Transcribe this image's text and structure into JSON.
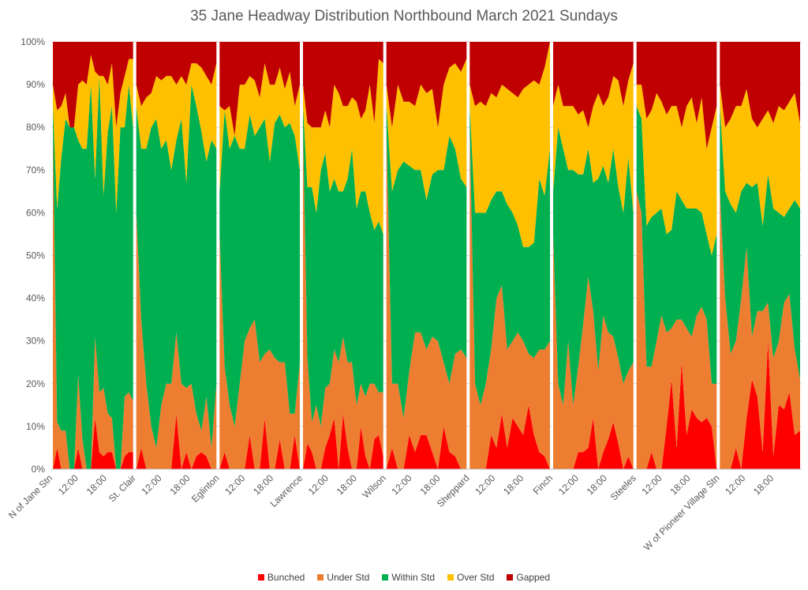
{
  "chart_data": {
    "type": "area",
    "stacking": "percent",
    "title": "35 Jane  Headway Distribution Northbound March 2021 Sundays",
    "ylim": [
      0,
      100
    ],
    "y_ticks": [
      "0%",
      "10%",
      "20%",
      "30%",
      "40%",
      "50%",
      "60%",
      "70%",
      "80%",
      "90%",
      "100%"
    ],
    "legend_position": "bottom",
    "grid": true,
    "x_tick_labels": [
      "N of Jane Stn",
      "12:00",
      "18:00",
      "St. Clair",
      "12:00",
      "18:00",
      "Eglinton",
      "12:00",
      "18:00",
      "Lawrence",
      "12:00",
      "18:00",
      "Wilson",
      "12:00",
      "18:00",
      "Sheppard",
      "12:00",
      "18:00",
      "Finch",
      "12:00",
      "18:00",
      "Steeles",
      "12:00",
      "18:00",
      "W of Pioneer Village Stn",
      "12:00",
      "18:00"
    ],
    "series": [
      {
        "name": "Bunched",
        "color": "#ff0000"
      },
      {
        "name": "Under Std",
        "color": "#ed7d31"
      },
      {
        "name": "Within Std",
        "color": "#00b050"
      },
      {
        "name": "Over Std",
        "color": "#ffc000"
      },
      {
        "name": "Gapped",
        "color": "#c00000"
      }
    ],
    "timepoints": [
      {
        "name": "N of Jane Stn",
        "bunched": [
          0,
          5,
          0,
          0,
          0,
          0,
          5,
          0,
          0,
          0,
          12,
          4,
          3,
          4,
          4,
          0,
          0,
          3,
          4,
          4
        ],
        "under": [
          80,
          6,
          9,
          9,
          0,
          0,
          17,
          7,
          0,
          0,
          19,
          14,
          16,
          9,
          8,
          0,
          0,
          14,
          14,
          12
        ],
        "within": [
          5,
          50,
          64,
          73,
          80,
          80,
          55,
          68,
          75,
          90,
          37,
          74,
          45,
          66,
          73,
          60,
          80,
          63,
          72,
          64
        ],
        "over": [
          5,
          23,
          12,
          6,
          0,
          0,
          13,
          16,
          15,
          7,
          25,
          0,
          28,
          11,
          10,
          20,
          8,
          12,
          6,
          16
        ],
        "gapped": [
          10,
          16,
          15,
          12,
          20,
          20,
          10,
          9,
          10,
          3,
          7,
          8,
          8,
          10,
          5,
          20,
          12,
          8,
          4,
          4
        ]
      },
      {
        "name": "St. Clair",
        "bunched": [
          0,
          5,
          0,
          0,
          0,
          0,
          0,
          0,
          13,
          0,
          4,
          0,
          3,
          4,
          3,
          0,
          0
        ],
        "under": [
          60,
          30,
          20,
          10,
          5,
          15,
          20,
          20,
          19,
          20,
          15,
          20,
          10,
          5,
          14,
          5,
          20
        ],
        "within": [
          25,
          40,
          55,
          70,
          77,
          60,
          57,
          50,
          45,
          62,
          48,
          70,
          72,
          70,
          55,
          72,
          55
        ],
        "over": [
          5,
          10,
          12,
          8,
          10,
          16,
          15,
          22,
          13,
          10,
          23,
          5,
          10,
          15,
          20,
          13,
          20
        ],
        "gapped": [
          10,
          15,
          13,
          12,
          8,
          9,
          8,
          8,
          10,
          8,
          10,
          5,
          5,
          6,
          8,
          10,
          5
        ]
      },
      {
        "name": "Eglinton",
        "bunched": [
          0,
          4,
          0,
          0,
          0,
          0,
          8,
          0,
          0,
          12,
          0,
          0,
          7,
          0,
          0,
          8,
          0
        ],
        "under": [
          55,
          20,
          15,
          10,
          20,
          30,
          25,
          35,
          25,
          15,
          28,
          26,
          18,
          25,
          13,
          5,
          25
        ],
        "within": [
          10,
          60,
          60,
          68,
          55,
          45,
          50,
          43,
          55,
          55,
          44,
          55,
          58,
          55,
          68,
          65,
          45
        ],
        "over": [
          20,
          0,
          10,
          0,
          15,
          15,
          9,
          13,
          7,
          13,
          18,
          9,
          11,
          9,
          12,
          7,
          20
        ],
        "gapped": [
          15,
          16,
          15,
          22,
          10,
          10,
          8,
          9,
          13,
          5,
          10,
          10,
          6,
          11,
          7,
          15,
          10
        ]
      },
      {
        "name": "Lawrence",
        "bunched": [
          0,
          6,
          4,
          0,
          0,
          5,
          8,
          12,
          0,
          13,
          5,
          0,
          0,
          10,
          3,
          0,
          7,
          8,
          3
        ],
        "under": [
          80,
          20,
          7,
          15,
          10,
          14,
          12,
          16,
          25,
          18,
          20,
          25,
          15,
          10,
          14,
          20,
          13,
          10,
          15
        ],
        "within": [
          5,
          40,
          55,
          45,
          60,
          55,
          45,
          40,
          40,
          34,
          43,
          50,
          46,
          45,
          48,
          40,
          36,
          40,
          37
        ],
        "over": [
          5,
          15,
          14,
          20,
          10,
          10,
          15,
          22,
          23,
          20,
          17,
          12,
          25,
          17,
          19,
          30,
          25,
          38,
          40
        ],
        "gapped": [
          10,
          19,
          20,
          20,
          20,
          16,
          20,
          10,
          12,
          15,
          15,
          13,
          14,
          18,
          16,
          10,
          19,
          4,
          5
        ]
      },
      {
        "name": "Wilson",
        "bunched": [
          0,
          5,
          0,
          0,
          8,
          4,
          8,
          8,
          4,
          0,
          10,
          4,
          3,
          0,
          0
        ],
        "under": [
          80,
          15,
          20,
          12,
          15,
          28,
          24,
          20,
          27,
          30,
          15,
          16,
          24,
          28,
          26
        ],
        "within": [
          5,
          45,
          50,
          60,
          48,
          38,
          38,
          35,
          38,
          40,
          45,
          58,
          48,
          40,
          40
        ],
        "over": [
          5,
          15,
          20,
          14,
          15,
          15,
          20,
          25,
          20,
          10,
          20,
          16,
          20,
          25,
          30
        ],
        "gapped": [
          10,
          20,
          10,
          14,
          14,
          15,
          10,
          12,
          11,
          20,
          10,
          6,
          5,
          7,
          4
        ]
      },
      {
        "name": "Sheppard",
        "bunched": [
          0,
          0,
          0,
          0,
          8,
          5,
          13,
          5,
          12,
          10,
          8,
          15,
          8,
          4,
          3,
          0
        ],
        "under": [
          80,
          20,
          15,
          20,
          20,
          35,
          30,
          23,
          18,
          22,
          22,
          12,
          18,
          24,
          25,
          30
        ],
        "within": [
          5,
          40,
          45,
          40,
          35,
          25,
          22,
          34,
          30,
          25,
          22,
          25,
          27,
          40,
          36,
          45
        ],
        "over": [
          5,
          25,
          26,
          25,
          25,
          22,
          25,
          27,
          28,
          30,
          37,
          38,
          38,
          22,
          30,
          25
        ],
        "gapped": [
          10,
          15,
          14,
          15,
          12,
          13,
          10,
          11,
          12,
          13,
          11,
          10,
          9,
          10,
          6,
          0
        ]
      },
      {
        "name": "Finch",
        "bunched": [
          0,
          0,
          0,
          0,
          0,
          4,
          4,
          5,
          12,
          0,
          4,
          7,
          11,
          6,
          0,
          3,
          0
        ],
        "under": [
          55,
          20,
          15,
          30,
          15,
          20,
          30,
          40,
          25,
          23,
          32,
          25,
          20,
          20,
          20,
          20,
          25
        ],
        "within": [
          10,
          60,
          60,
          40,
          55,
          45,
          35,
          30,
          30,
          45,
          35,
          35,
          44,
          40,
          40,
          50,
          35
        ],
        "over": [
          20,
          10,
          10,
          15,
          15,
          14,
          15,
          5,
          18,
          20,
          14,
          20,
          17,
          25,
          25,
          18,
          35
        ],
        "gapped": [
          15,
          10,
          15,
          15,
          15,
          17,
          16,
          20,
          15,
          12,
          15,
          13,
          8,
          9,
          15,
          9,
          5
        ]
      },
      {
        "name": "Steeles",
        "bunched": [
          0,
          0,
          0,
          4,
          0,
          0,
          10,
          21,
          5,
          25,
          8,
          14,
          12,
          11,
          12,
          10,
          0
        ],
        "under": [
          65,
          60,
          24,
          20,
          30,
          36,
          22,
          12,
          30,
          10,
          25,
          17,
          24,
          27,
          23,
          10,
          20
        ],
        "within": [
          20,
          22,
          33,
          35,
          30,
          25,
          23,
          23,
          30,
          28,
          28,
          30,
          25,
          22,
          20,
          30,
          35
        ],
        "over": [
          5,
          8,
          25,
          25,
          28,
          25,
          28,
          29,
          20,
          17,
          24,
          26,
          20,
          27,
          20,
          30,
          30
        ],
        "gapped": [
          10,
          10,
          18,
          16,
          12,
          14,
          17,
          15,
          15,
          20,
          15,
          13,
          19,
          13,
          25,
          20,
          15
        ]
      },
      {
        "name": "W of Pioneer Village Stn",
        "bunched": [
          0,
          0,
          0,
          5,
          0,
          12,
          21,
          17,
          4,
          30,
          3,
          15,
          14,
          18,
          8,
          9
        ],
        "under": [
          65,
          40,
          27,
          25,
          40,
          40,
          10,
          20,
          33,
          9,
          23,
          15,
          25,
          23,
          20,
          12
        ],
        "within": [
          20,
          25,
          35,
          30,
          25,
          15,
          35,
          30,
          20,
          30,
          35,
          30,
          20,
          20,
          35,
          40
        ],
        "over": [
          5,
          15,
          20,
          25,
          20,
          22,
          16,
          13,
          25,
          15,
          20,
          25,
          25,
          25,
          25,
          20
        ],
        "gapped": [
          10,
          20,
          18,
          15,
          15,
          11,
          18,
          20,
          18,
          16,
          19,
          15,
          16,
          14,
          12,
          19
        ]
      }
    ]
  }
}
